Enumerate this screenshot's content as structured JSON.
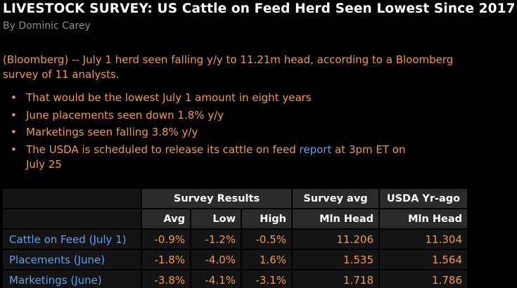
{
  "article": {
    "headline": "LIVESTOCK SURVEY: US Cattle on Feed Herd Seen Lowest Since 2017",
    "byline": "By Dominic Carey",
    "lead": "(Bloomberg) -- July 1 herd seen falling y/y to 11.21m head, according to a Bloomberg survey of 11 analysts.",
    "bullet_marker": "•",
    "bullets": [
      "That would be the lowest July 1 amount in eight years",
      "June placements seen down 1.8% y/y",
      "Marketings seen falling 3.8% y/y"
    ],
    "last_bullet": {
      "before": "The USDA is scheduled to release its cattle on feed ",
      "link": "report",
      "after": " at 3pm ET on July 25"
    }
  },
  "table": {
    "group_headers": {
      "survey_results": "Survey Results",
      "survey_avg": "Survey avg",
      "usda_yr_ago": "USDA Yr-ago"
    },
    "sub_headers": {
      "avg": "Avg",
      "low": "Low",
      "high": "High",
      "survey_avg_unit": "Mln Head",
      "usda_unit": "Mln Head"
    },
    "rows": [
      {
        "label": "Cattle on Feed (July 1)",
        "avg": "-0.9%",
        "low": "-1.2%",
        "high": "-0.5%",
        "survey_avg": "11.206",
        "usda": "11.304"
      },
      {
        "label": "Placements (June)",
        "avg": "-1.8%",
        "low": "-4.0%",
        "high": "1.6%",
        "survey_avg": "1.535",
        "usda": "1.564"
      },
      {
        "label": "Marketings (June)",
        "avg": "-3.8%",
        "low": "-4.1%",
        "high": "-3.1%",
        "survey_avg": "1.718",
        "usda": "1.786"
      }
    ]
  },
  "colors": {
    "background": "#000000",
    "headline": "#ffffff",
    "byline": "#8c8c8c",
    "body_text": "#f49a3a",
    "link": "#5aa0f0",
    "header_cell": "#2b2b2b",
    "data_cell": "#141414"
  }
}
